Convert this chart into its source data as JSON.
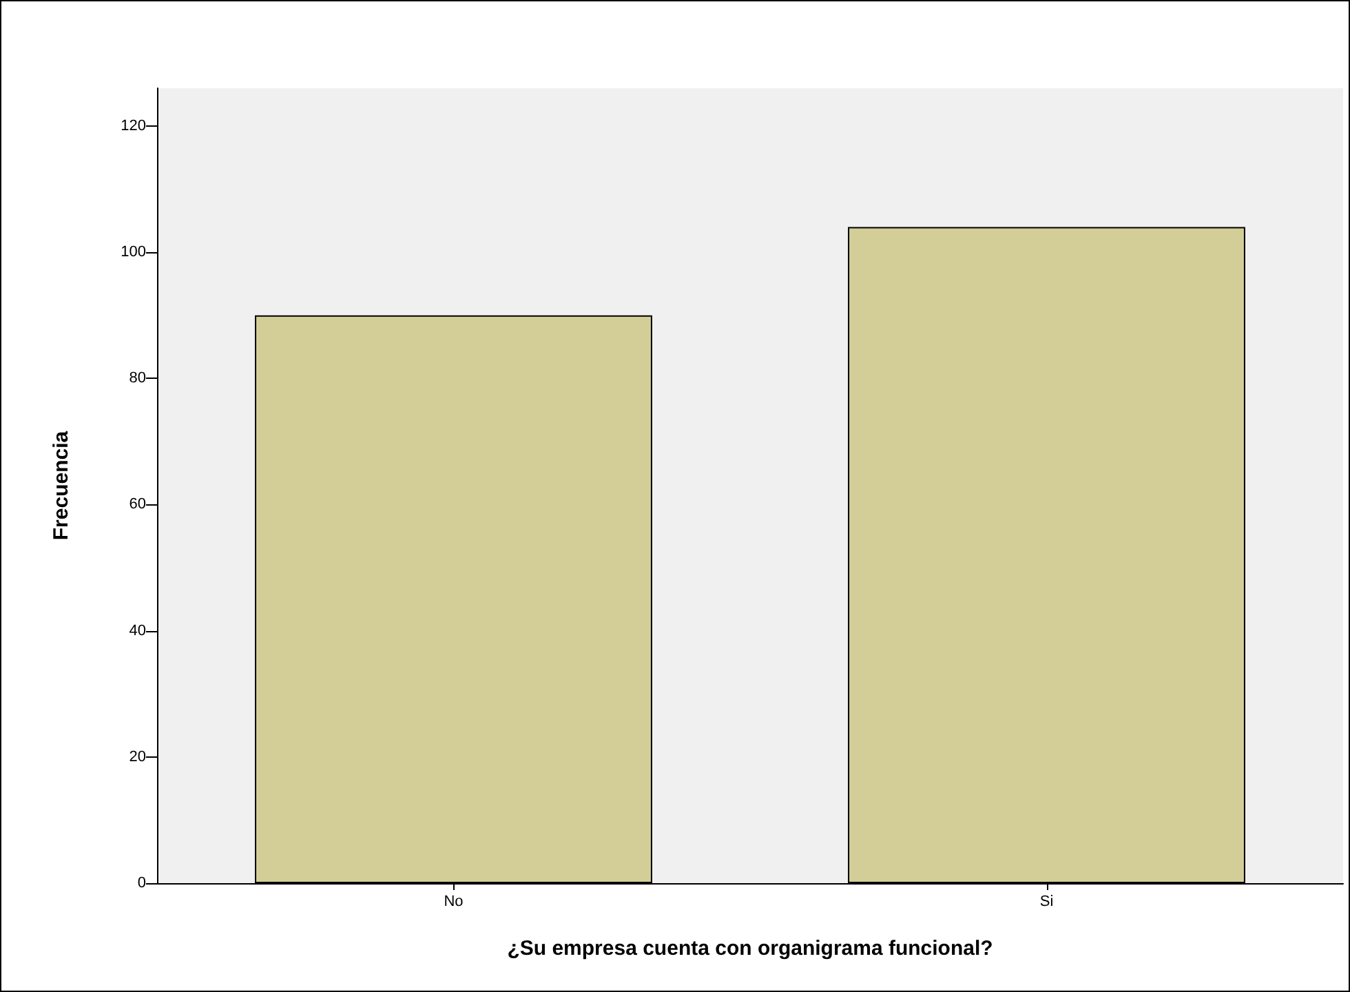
{
  "chart_data": {
    "type": "bar",
    "xlabel": "¿Su empresa cuenta con organigrama funcional?",
    "ylabel": "Frecuencia",
    "categories": [
      "No",
      "Si"
    ],
    "values": [
      90,
      104
    ],
    "color": "#d3ce97",
    "ylim": [
      0,
      126
    ],
    "yticks": [
      0,
      20,
      40,
      60,
      80,
      100,
      120
    ],
    "grid": false
  }
}
